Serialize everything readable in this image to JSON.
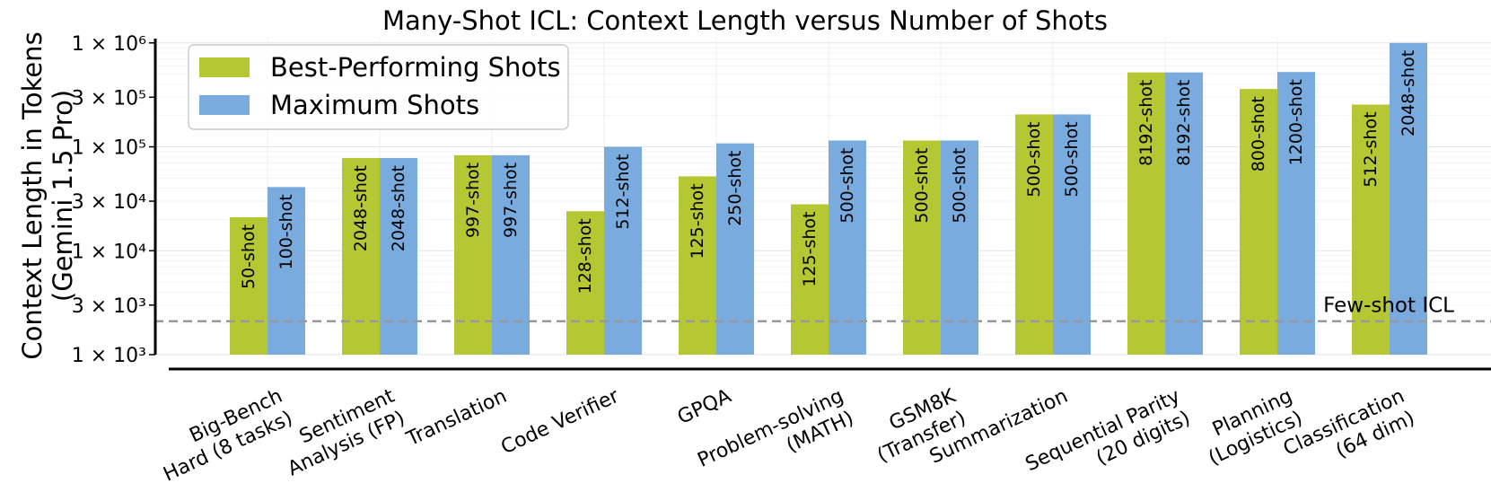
{
  "chart_data": {
    "type": "bar",
    "title": "Many-Shot ICL: Context Length versus Number of Shots",
    "ylabel": [
      "Context Length in Tokens",
      "(Gemini 1.5 Pro)"
    ],
    "xlabel": "",
    "yscale": "log",
    "ylim": [
      1000,
      1100000
    ],
    "yticks": [
      {
        "value": 1000,
        "label": "1 × 10³"
      },
      {
        "value": 3000,
        "label": "3 × 10³"
      },
      {
        "value": 10000,
        "label": "1 × 10⁴"
      },
      {
        "value": 30000,
        "label": "3 × 10⁴"
      },
      {
        "value": 100000,
        "label": "1 × 10⁵"
      },
      {
        "value": 300000,
        "label": "3 × 10⁵"
      },
      {
        "value": 1000000,
        "label": "1 × 10⁶"
      }
    ],
    "grid": true,
    "legend_position": "top-left",
    "categories": [
      [
        "Big-Bench",
        "Hard (8 tasks)"
      ],
      [
        "Sentiment",
        "Analysis (FP)"
      ],
      [
        "Translation"
      ],
      [
        "Code Verifier"
      ],
      [
        "GPQA"
      ],
      [
        "Problem-solving",
        "(MATH)"
      ],
      [
        "GSM8K",
        "(Transfer)"
      ],
      [
        "Summarization"
      ],
      [
        "Sequential Parity",
        "(20 digits)"
      ],
      [
        "Planning",
        "(Logistics)"
      ],
      [
        "Classification",
        "(64 dim)"
      ]
    ],
    "series": [
      {
        "name": "Best-Performing Shots",
        "color": "#b5c732",
        "values": [
          21000,
          78000,
          83000,
          24000,
          52000,
          28000,
          115000,
          205000,
          520000,
          360000,
          255000
        ],
        "labels": [
          "50-shot",
          "2048-shot",
          "997-shot",
          "128-shot",
          "125-shot",
          "125-shot",
          "500-shot",
          "500-shot",
          "8192-shot",
          "800-shot",
          "512-shot"
        ]
      },
      {
        "name": "Maximum Shots",
        "color": "#7aabdf",
        "values": [
          41000,
          78000,
          83000,
          100000,
          108000,
          115000,
          115000,
          205000,
          520000,
          525000,
          1000000
        ],
        "labels": [
          "100-shot",
          "2048-shot",
          "997-shot",
          "512-shot",
          "250-shot",
          "500-shot",
          "500-shot",
          "500-shot",
          "8192-shot",
          "1200-shot",
          "2048-shot"
        ]
      }
    ],
    "reference_line": {
      "label": "Few-shot ICL",
      "value": 2100,
      "style": "dashed",
      "color": "#999999"
    }
  }
}
